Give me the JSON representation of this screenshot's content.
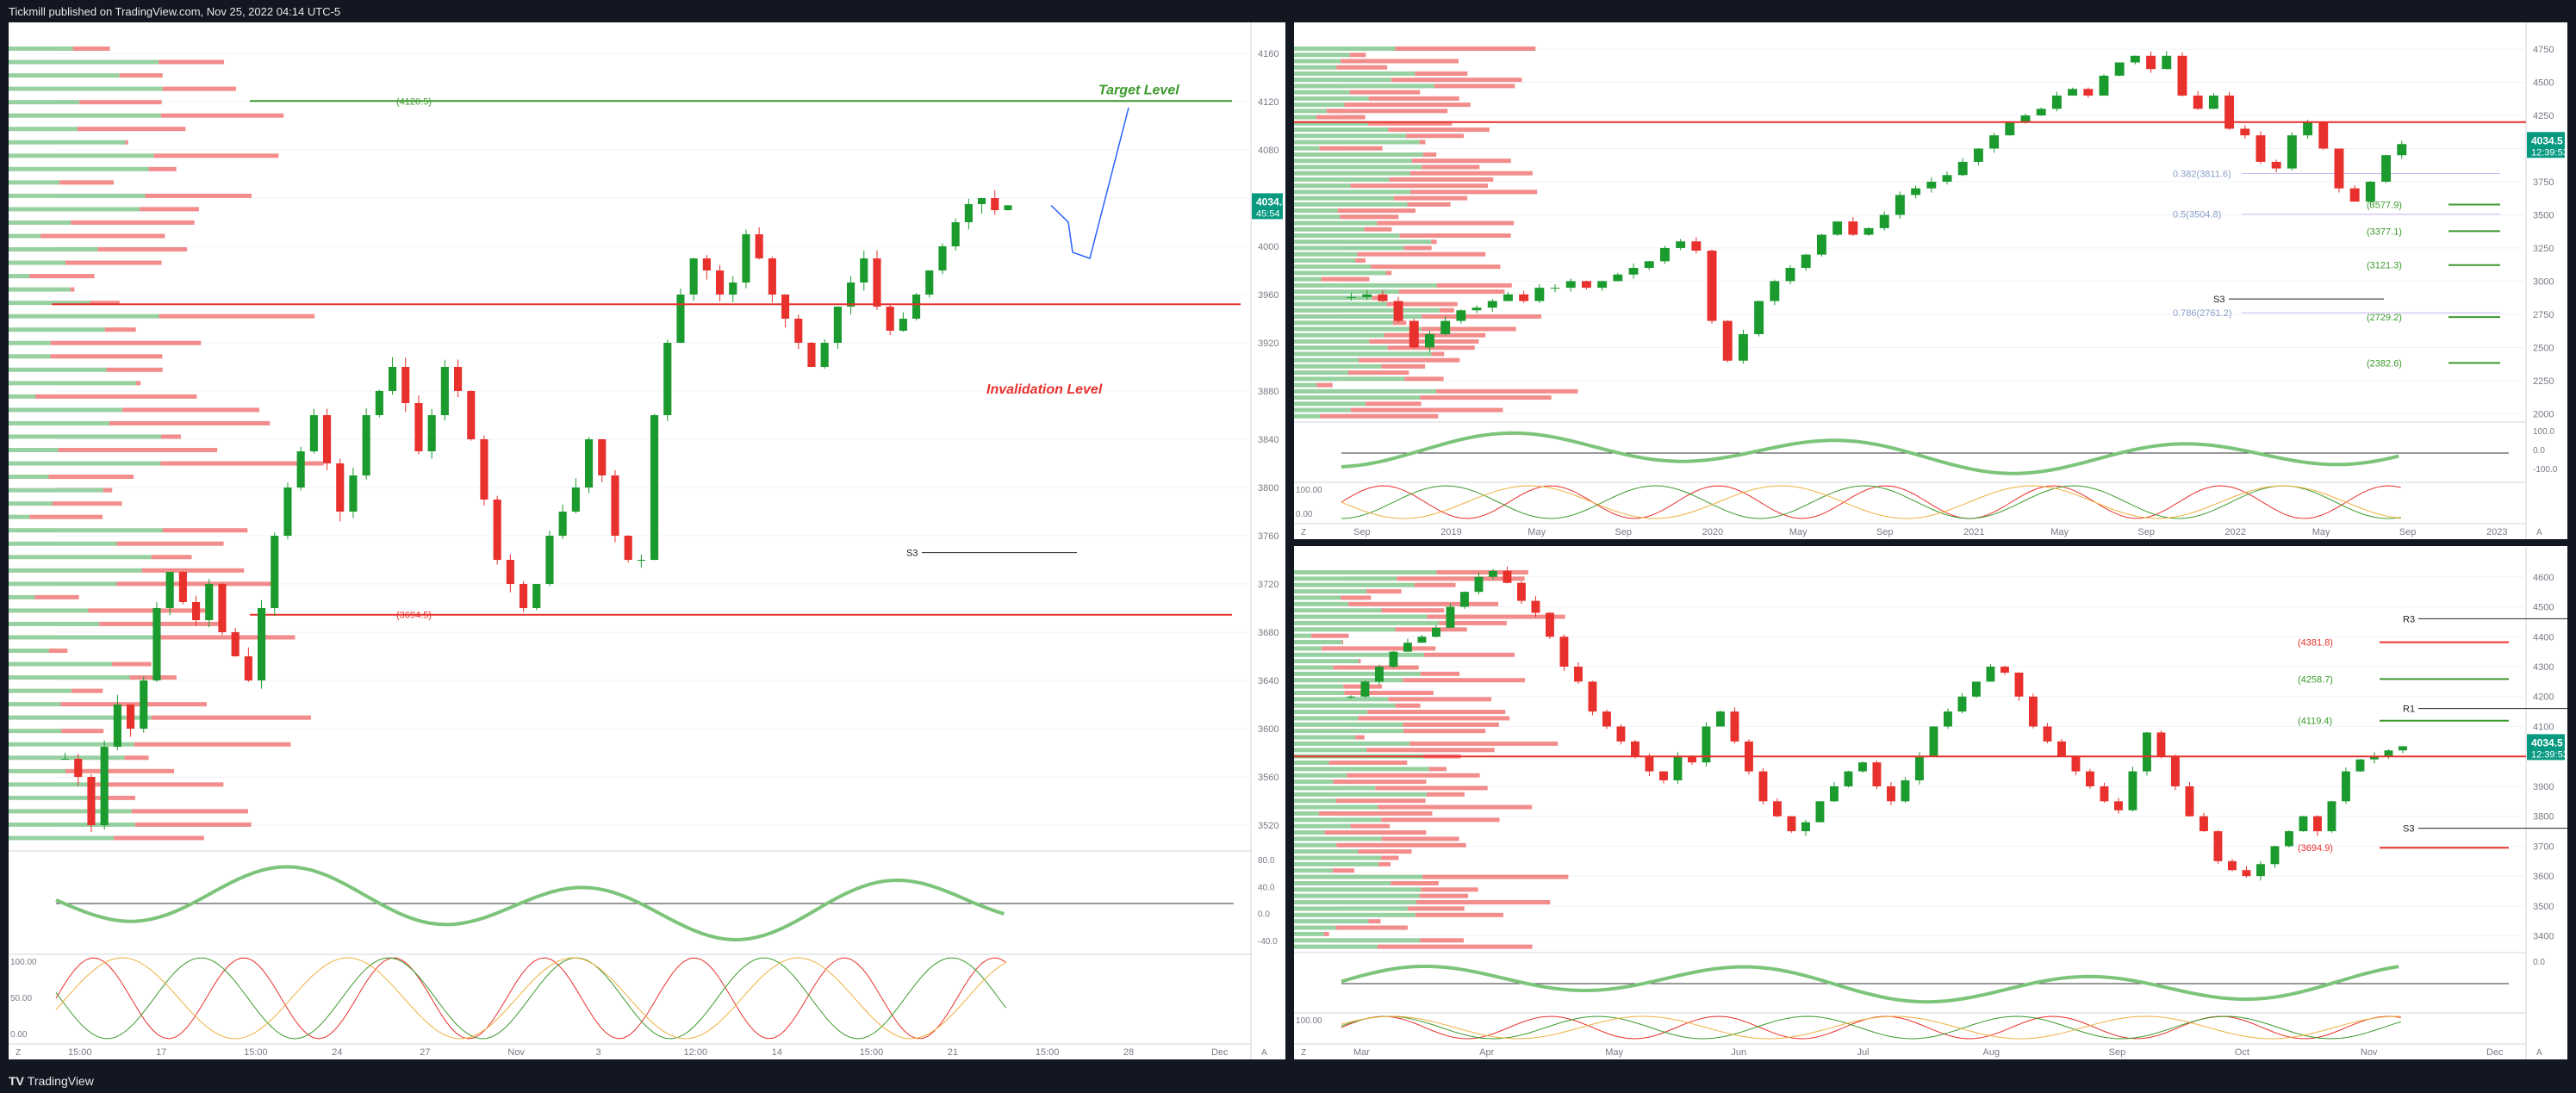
{
  "header": {
    "publisher": "Tickmill published on TradingView.com, Nov 25, 2022 04:14 UTC-5"
  },
  "footer": {
    "brand": "TradingView"
  },
  "colors": {
    "bull": "#1b9a2e",
    "bear": "#e8302c",
    "target": "#3c9a2c",
    "invalid": "#e8302c",
    "price_badge": "#089981",
    "background": "#131722"
  },
  "chart_data": [
    {
      "type": "candlestick",
      "panel": "left",
      "timeframe_hint": "intraday",
      "x_ticks": [
        "15:00",
        "17",
        "15:00",
        "24",
        "27",
        "Nov",
        "3",
        "12:00",
        "14",
        "15:00",
        "21",
        "15:00",
        "28",
        "Dec"
      ],
      "y_ticks": [
        4160,
        4120,
        4080,
        4040,
        4000,
        3960,
        3920,
        3880,
        3840,
        3800,
        3760,
        3720,
        3680,
        3640,
        3600,
        3560,
        3520
      ],
      "ylim": [
        3500,
        4180
      ],
      "price": "4034.5",
      "countdown": "45:54",
      "annotations": {
        "target": "Target Level",
        "invalidation": "Invalidation Level"
      },
      "levels": [
        {
          "label": "(4120.5)",
          "value": 4120.5,
          "color": "#3c9a2c"
        },
        {
          "label": "(3694.5)",
          "value": 3694.5,
          "color": "#e8302c"
        }
      ],
      "pivots": [
        {
          "label": "S3",
          "value": 3746
        }
      ],
      "oscillator_ticks": [
        "80.0",
        "40.0",
        "0.0",
        "-40.0"
      ],
      "stoch_ticks": [
        "100.00",
        "50.00",
        "0.00"
      ],
      "closes": [
        3575,
        3560,
        3520,
        3585,
        3620,
        3600,
        3640,
        3700,
        3730,
        3705,
        3690,
        3720,
        3680,
        3660,
        3640,
        3700,
        3760,
        3800,
        3830,
        3860,
        3820,
        3780,
        3810,
        3860,
        3880,
        3900,
        3870,
        3830,
        3860,
        3900,
        3880,
        3840,
        3790,
        3740,
        3720,
        3700,
        3720,
        3760,
        3780,
        3800,
        3840,
        3810,
        3760,
        3740,
        3740,
        3860,
        3920,
        3960,
        3990,
        3980,
        3960,
        3970,
        4010,
        3990,
        3960,
        3940,
        3920,
        3900,
        3920,
        3950,
        3970,
        3990,
        3950,
        3930,
        3940,
        3960,
        3980,
        4000,
        4020,
        4035,
        4040,
        4030,
        4034
      ]
    },
    {
      "type": "candlestick",
      "panel": "top-right",
      "timeframe_hint": "weekly",
      "x_ticks": [
        "Sep",
        "2019",
        "May",
        "Sep",
        "2020",
        "May",
        "Sep",
        "2021",
        "May",
        "Sep",
        "2022",
        "May",
        "Sep",
        "2023"
      ],
      "y_ticks": [
        4750,
        4500,
        4250,
        4000,
        3750,
        3500,
        3250,
        3000,
        2750,
        2500,
        2250,
        2000
      ],
      "ylim": [
        1950,
        4900
      ],
      "price": "4034.5",
      "countdown": "12:39:53",
      "fib_levels": [
        {
          "label": "0.382(3811.6)",
          "value": 3811.6
        },
        {
          "label": "0.5(3504.8)",
          "value": 3504.8
        },
        {
          "label": "0.786(2761.2)",
          "value": 2761.2
        }
      ],
      "levels": [
        {
          "label": "(3577.9)",
          "value": 3577.9
        },
        {
          "label": "(3377.1)",
          "value": 3377.1
        },
        {
          "label": "(3121.3)",
          "value": 3121.3
        },
        {
          "label": "(2729.2)",
          "value": 2729.2
        },
        {
          "label": "(2382.6)",
          "value": 2382.6
        }
      ],
      "pivots": [
        {
          "label": "S3",
          "value": 2865
        }
      ],
      "oscillator_ticks": [
        "100.0",
        "0.0",
        "-100.0"
      ],
      "stoch_ticks": [
        "100.00",
        "0.00"
      ],
      "closes": [
        2880,
        2900,
        2850,
        2700,
        2500,
        2600,
        2700,
        2780,
        2800,
        2850,
        2900,
        2850,
        2950,
        2950,
        3000,
        2950,
        3000,
        3050,
        3100,
        3150,
        3250,
        3300,
        3230,
        2700,
        2400,
        2600,
        2850,
        3000,
        3100,
        3200,
        3350,
        3450,
        3350,
        3400,
        3500,
        3650,
        3700,
        3750,
        3800,
        3900,
        4000,
        4100,
        4200,
        4250,
        4300,
        4400,
        4450,
        4400,
        4550,
        4650,
        4700,
        4600,
        4700,
        4400,
        4300,
        4400,
        4150,
        4100,
        3900,
        3850,
        4100,
        4200,
        4000,
        3700,
        3600,
        3750,
        3950,
        4034
      ]
    },
    {
      "type": "candlestick",
      "panel": "bottom-right",
      "timeframe_hint": "daily",
      "x_ticks": [
        "Mar",
        "Apr",
        "May",
        "Jun",
        "Jul",
        "Aug",
        "Sep",
        "Oct",
        "Nov",
        "Dec"
      ],
      "y_ticks": [
        4600,
        4500,
        4400,
        4300,
        4200,
        4100,
        4000,
        3900,
        3800,
        3700,
        3600,
        3500,
        3400
      ],
      "ylim": [
        3350,
        4680
      ],
      "price": "4034.5",
      "countdown": "12:39:53",
      "levels": [
        {
          "label": "(4381.8)",
          "value": 4381.8,
          "color": "#e8302c"
        },
        {
          "label": "(4258.7)",
          "value": 4258.7,
          "color": "#3c9a2c"
        },
        {
          "label": "(4119.4)",
          "value": 4119.4,
          "color": "#3c9a2c"
        },
        {
          "label": "(3694.9)",
          "value": 3694.9,
          "color": "#e8302c"
        }
      ],
      "pivots": [
        {
          "label": "R3",
          "value": 4460
        },
        {
          "label": "R1",
          "value": 4160
        },
        {
          "label": "S3",
          "value": 3760
        }
      ],
      "oscillator_ticks": [
        "0.0"
      ],
      "stoch_ticks": [
        "100.00"
      ],
      "closes": [
        4200,
        4250,
        4300,
        4350,
        4380,
        4400,
        4430,
        4500,
        4550,
        4600,
        4620,
        4580,
        4520,
        4480,
        4400,
        4300,
        4250,
        4150,
        4100,
        4050,
        4000,
        3950,
        3920,
        4000,
        3980,
        4100,
        4150,
        4050,
        3950,
        3850,
        3800,
        3750,
        3780,
        3850,
        3900,
        3950,
        3980,
        3900,
        3850,
        3920,
        4000,
        4100,
        4150,
        4200,
        4250,
        4300,
        4280,
        4200,
        4100,
        4050,
        4000,
        3950,
        3900,
        3850,
        3820,
        3950,
        4080,
        4000,
        3900,
        3800,
        3750,
        3650,
        3620,
        3600,
        3640,
        3700,
        3750,
        3800,
        3750,
        3850,
        3950,
        3990,
        4000,
        4020,
        4034
      ]
    }
  ]
}
